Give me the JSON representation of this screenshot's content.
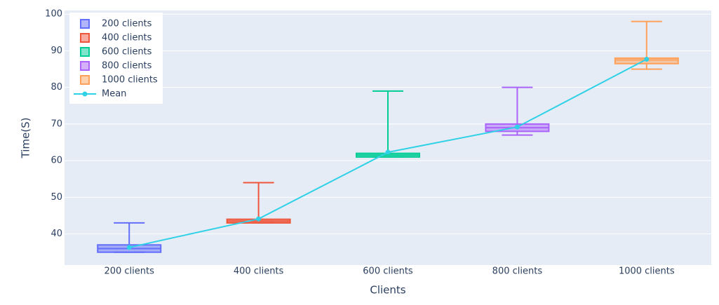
{
  "chart_data": {
    "type": "box",
    "xlabel": "Clients",
    "ylabel": "Time(S)",
    "categories": [
      "200 clients",
      "400 clients",
      "600 clients",
      "800 clients",
      "1000 clients"
    ],
    "ylim": [
      31.5,
      101
    ],
    "yticks": [
      40,
      50,
      60,
      70,
      80,
      90,
      100
    ],
    "grid": true,
    "legend_position": "top-left",
    "series": [
      {
        "name": "200 clients",
        "color": "#636efa",
        "min": 35,
        "q1": 35,
        "median": 36,
        "q3": 37,
        "max": 43
      },
      {
        "name": "400 clients",
        "color": "#ef553b",
        "min": 43,
        "q1": 43,
        "median": 43.5,
        "q3": 44,
        "max": 54
      },
      {
        "name": "600 clients",
        "color": "#00cc96",
        "min": 61,
        "q1": 61,
        "median": 61.5,
        "q3": 62,
        "max": 79
      },
      {
        "name": "800 clients",
        "color": "#ab63fa",
        "min": 67,
        "q1": 68,
        "median": 69,
        "q3": 70,
        "max": 80
      },
      {
        "name": "1000 clients",
        "color": "#ffa15a",
        "min": 85,
        "q1": 86.5,
        "median": 87.5,
        "q3": 88,
        "max": 98
      }
    ],
    "mean_line": {
      "name": "Mean",
      "color": "#2ed1e6",
      "values": [
        36.3,
        44.1,
        62.3,
        69.2,
        87.7
      ]
    }
  }
}
